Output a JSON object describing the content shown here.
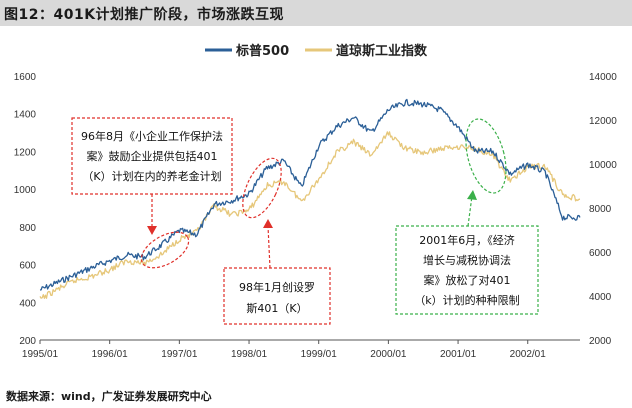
{
  "header": {
    "title": "图12：401K计划推广阶段，市场涨跌互现"
  },
  "footer": {
    "source": "数据来源：wind，广发证券发展研究中心"
  },
  "colors": {
    "sp500": "#2b5f97",
    "dow": "#e6c77a",
    "red_annotation": "#e0302a",
    "green_annotation": "#3bb04a",
    "header_bg": "#d9d9d9"
  },
  "chart_data": {
    "type": "line",
    "title": "",
    "xlabel": "",
    "ylabel": "",
    "x_ticks": [
      "1995/01",
      "1996/01",
      "1997/01",
      "1998/01",
      "1999/01",
      "2000/01",
      "2001/01",
      "2002/01"
    ],
    "x_range": [
      "1995/01",
      "2002/10"
    ],
    "y_left_ticks": [
      200,
      400,
      600,
      800,
      1000,
      1200,
      1400,
      1600
    ],
    "y_left_lim": [
      200,
      1600
    ],
    "y_right_ticks": [
      2000,
      4000,
      6000,
      8000,
      10000,
      12000,
      14000
    ],
    "y_right_lim": [
      2000,
      14000
    ],
    "grid": false,
    "legend_position": "top",
    "series": [
      {
        "name": "标普500",
        "axis": "left",
        "x": [
          "1995/01",
          "1995/04",
          "1995/07",
          "1995/10",
          "1996/01",
          "1996/04",
          "1996/07",
          "1996/10",
          "1997/01",
          "1997/04",
          "1997/07",
          "1997/10",
          "1998/01",
          "1998/04",
          "1998/07",
          "1998/10",
          "1999/01",
          "1999/04",
          "1999/07",
          "1999/10",
          "2000/01",
          "2000/04",
          "2000/07",
          "2000/10",
          "2001/01",
          "2001/04",
          "2001/07",
          "2001/10",
          "2002/01",
          "2002/04",
          "2002/07",
          "2002/10"
        ],
        "values": [
          465,
          505,
          545,
          585,
          620,
          650,
          640,
          705,
          780,
          760,
          920,
          940,
          975,
          1110,
          1150,
          1010,
          1230,
          1330,
          1380,
          1300,
          1420,
          1460,
          1450,
          1420,
          1330,
          1200,
          1200,
          1080,
          1130,
          1090,
          850,
          850
        ]
      },
      {
        "name": "道琼斯工业指数",
        "axis": "right",
        "x": [
          "1995/01",
          "1995/04",
          "1995/07",
          "1995/10",
          "1996/01",
          "1996/04",
          "1996/07",
          "1996/10",
          "1997/01",
          "1997/04",
          "1997/07",
          "1997/10",
          "1998/01",
          "1998/04",
          "1998/07",
          "1998/10",
          "1999/01",
          "1999/04",
          "1999/07",
          "1999/10",
          "2000/01",
          "2000/04",
          "2000/07",
          "2000/10",
          "2001/01",
          "2001/04",
          "2001/07",
          "2001/10",
          "2002/01",
          "2002/04",
          "2002/07",
          "2002/10"
        ],
        "values": [
          3850,
          4300,
          4700,
          4900,
          5200,
          5600,
          5500,
          5900,
          6600,
          6900,
          8100,
          7700,
          7900,
          9000,
          9200,
          8300,
          9300,
          10500,
          11000,
          10400,
          11400,
          10700,
          10500,
          10700,
          10800,
          10700,
          10400,
          9200,
          9900,
          9900,
          8600,
          8400
        ]
      }
    ],
    "annotations": [
      {
        "text_lines": [
          "96年8月《小企业工作保护法",
          "案》鼓励企业提供包括401",
          "（K）计划在内的养老金计划"
        ],
        "style": "red"
      },
      {
        "text_lines": [
          "98年1月创设罗",
          "斯401（K）"
        ],
        "style": "red"
      },
      {
        "text_lines": [
          "2001年6月，《经济",
          "增长与减税协调法",
          "案》放松了对401",
          "（k）计划的种种限制"
        ],
        "style": "green"
      }
    ]
  }
}
